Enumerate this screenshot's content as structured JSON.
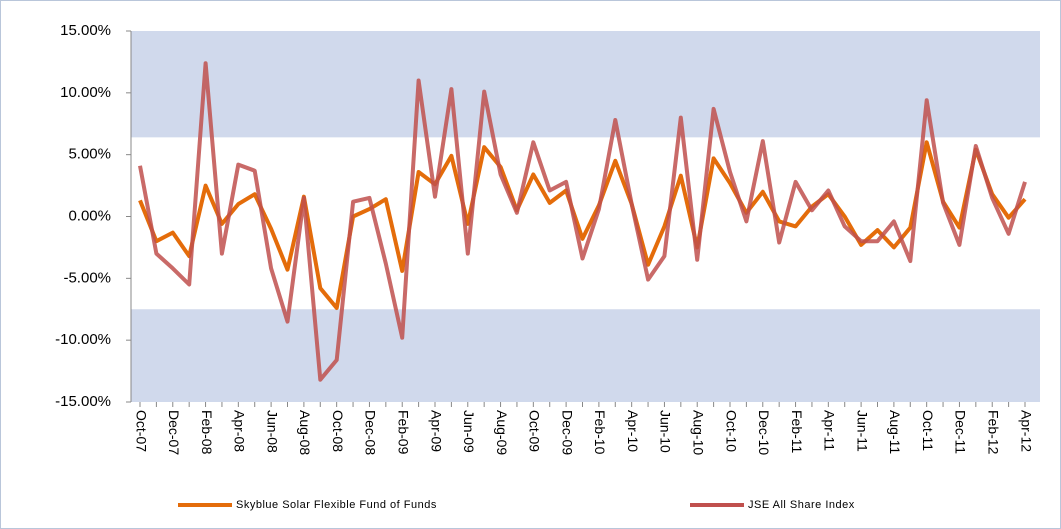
{
  "chart_data": {
    "type": "line",
    "categories": [
      "Oct-07",
      null,
      "Dec-07",
      null,
      "Feb-08",
      null,
      "Apr-08",
      null,
      "Jun-08",
      null,
      "Aug-08",
      null,
      "Oct-08",
      null,
      "Dec-08",
      null,
      "Feb-09",
      null,
      "Apr-09",
      null,
      "Jun-09",
      null,
      "Aug-09",
      null,
      "Oct-09",
      null,
      "Dec-09",
      null,
      "Feb-10",
      null,
      "Apr-10",
      null,
      "Jun-10",
      null,
      "Aug-10",
      null,
      "Oct-10",
      null,
      "Dec-10",
      null,
      "Feb-11",
      null,
      "Apr-11",
      null,
      "Jun-11",
      null,
      "Aug-11",
      null,
      "Oct-11",
      null,
      "Dec-11",
      null,
      "Feb-12",
      null,
      "Apr-12"
    ],
    "series": [
      {
        "name": "Skyblue Solar Flexible Fund of Funds",
        "color": "#e46c0a",
        "values": [
          1.3,
          -2.0,
          -1.3,
          -3.2,
          2.5,
          -0.6,
          1.0,
          1.8,
          -1.0,
          -4.3,
          1.6,
          -5.8,
          -7.4,
          0.0,
          0.6,
          1.4,
          -4.4,
          3.6,
          2.6,
          4.9,
          -0.6,
          5.6,
          4.0,
          0.5,
          3.4,
          1.1,
          2.1,
          -1.8,
          0.9,
          4.5,
          1.0,
          -3.9,
          -0.8,
          3.3,
          -2.5,
          4.7,
          2.7,
          0.3,
          2.0,
          -0.4,
          -0.8,
          0.8,
          1.8,
          0.0,
          -2.3,
          -1.1,
          -2.5,
          -0.9,
          6.0,
          1.2,
          -0.9,
          5.4,
          1.8,
          -0.1,
          1.4
        ]
      },
      {
        "name": "JSE All Share Index",
        "color": "#c0504d",
        "values": [
          4.1,
          -3.0,
          -4.2,
          -5.5,
          12.4,
          -3.0,
          4.2,
          3.7,
          -4.2,
          -8.5,
          1.5,
          -13.2,
          -11.6,
          1.2,
          1.5,
          -3.8,
          -9.8,
          11.0,
          1.6,
          10.3,
          -3.0,
          10.1,
          3.4,
          0.3,
          6.0,
          2.1,
          2.8,
          -3.4,
          0.6,
          7.8,
          1.0,
          -5.1,
          -3.2,
          8.0,
          -3.5,
          8.7,
          3.6,
          -0.4,
          6.1,
          -2.1,
          2.8,
          0.5,
          2.1,
          -0.8,
          -2.0,
          -2.0,
          -0.4,
          -3.6,
          9.4,
          1.1,
          -2.3,
          5.7,
          1.5,
          -1.4,
          2.8
        ]
      }
    ],
    "ylim": [
      -15,
      15
    ],
    "yticks": [
      {
        "value": -15,
        "label": "-15.00%"
      },
      {
        "value": -10,
        "label": "-10.00%"
      },
      {
        "value": -5,
        "label": "-5.00%"
      },
      {
        "value": 0,
        "label": "0.00%"
      },
      {
        "value": 5,
        "label": "5.00%"
      },
      {
        "value": 10,
        "label": "10.00%"
      },
      {
        "value": 15,
        "label": "15.00%"
      }
    ],
    "bands": [
      [
        6.4,
        15
      ],
      [
        -15,
        -7.5
      ]
    ],
    "band_color": "#d0d9ec",
    "legend": "bottom"
  }
}
